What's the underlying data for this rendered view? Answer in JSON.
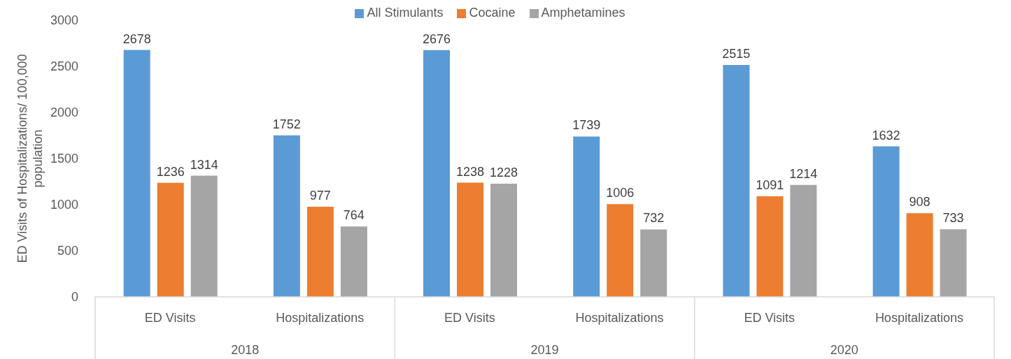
{
  "chart_data": {
    "type": "bar",
    "ylabel": "ED Visits of Hospitalizations/ 100,000 population",
    "categories": [
      "ED Visits",
      "Hospitalizations",
      "ED Visits",
      "Hospitalizations",
      "ED Visits",
      "Hospitalizations"
    ],
    "annotations": [
      "2018",
      "2019",
      "2020"
    ],
    "series": [
      {
        "name": "All Stimulants",
        "color": "#5b9bd5",
        "values": [
          2678,
          1752,
          2676,
          1739,
          2515,
          1632
        ]
      },
      {
        "name": "Cocaine",
        "color": "#ed7d31",
        "values": [
          1236,
          977,
          1238,
          1006,
          1091,
          908
        ]
      },
      {
        "name": "Amphetamines",
        "color": "#a5a5a5",
        "values": [
          1314,
          764,
          1228,
          732,
          1214,
          733
        ]
      }
    ],
    "ylim": [
      0,
      3000
    ],
    "yticks": [
      0,
      500,
      1000,
      1500,
      2000,
      2500,
      3000
    ],
    "grid": false,
    "legend": "top",
    "data_labels": true
  }
}
